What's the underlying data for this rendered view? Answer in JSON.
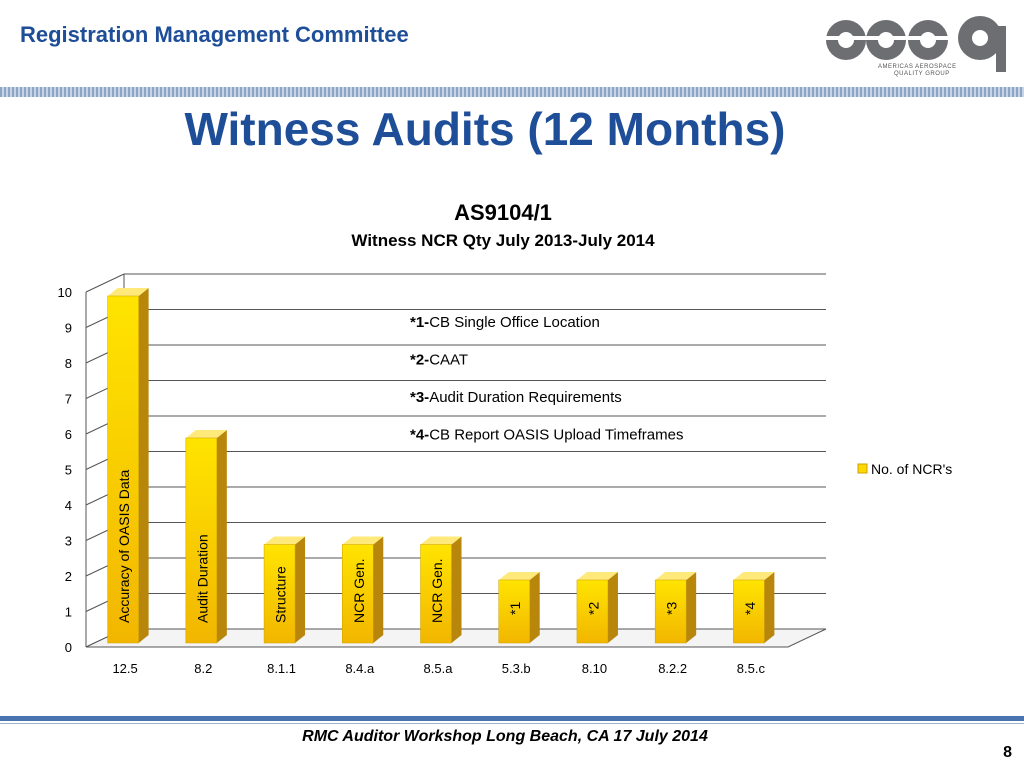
{
  "header": {
    "title": "Registration Management Committee"
  },
  "logo": {
    "text": "aaqg",
    "line1": "AMERICAS AEROSPACE",
    "line2": "QUALITY GROUP"
  },
  "page_title": "Witness Audits (12 Months)",
  "chart_data": {
    "type": "bar",
    "title": "AS9104/1",
    "subtitle": "Witness NCR Qty July 2013-July 2014",
    "categories": [
      "12.5",
      "8.2",
      "8.1.1",
      "8.4.a",
      "8.5.a",
      "5.3.b",
      "8.10",
      "8.2.2",
      "8.5.c"
    ],
    "series": [
      {
        "name": "No. of NCR's",
        "values": [
          10,
          6,
          3,
          3,
          3,
          2,
          2,
          2,
          2
        ],
        "color": "#ffd700"
      }
    ],
    "bar_labels": [
      "Accuracy of OASIS Data",
      "Audit Duration",
      "Structure",
      "NCR Gen.",
      "NCR Gen.",
      "*1",
      "*2",
      "*3",
      "*4"
    ],
    "yticks": [
      "0",
      "1",
      "2",
      "3",
      "4",
      "5",
      "6",
      "7",
      "8",
      "9",
      "10"
    ],
    "ylim": [
      0,
      10
    ],
    "grid": true,
    "legend_position": "right",
    "notes": [
      {
        "key": "*1-",
        "text": "CB Single Office Location"
      },
      {
        "key": "*2-",
        "text": "CAAT"
      },
      {
        "key": "*3-",
        "text": "Audit Duration Requirements"
      },
      {
        "key": "*4-",
        "text": "CB Report OASIS Upload Timeframes"
      }
    ]
  },
  "footer": {
    "text": "RMC Auditor Workshop Long Beach, CA 17 July 2014",
    "page": "8"
  }
}
